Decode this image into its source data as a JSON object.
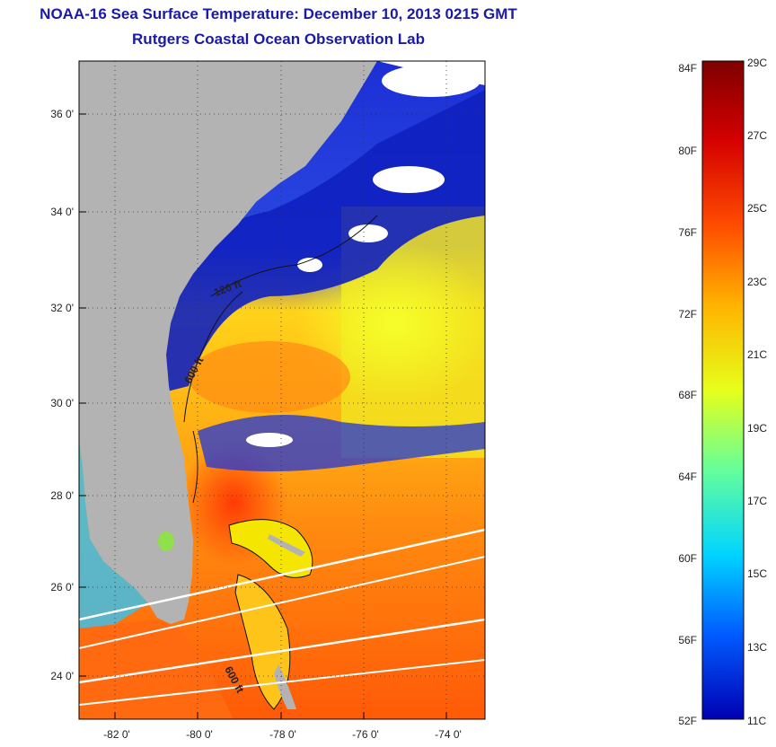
{
  "title": {
    "line1": "NOAA-16 Sea Surface Temperature:  December 10, 2013 0215 GMT",
    "line2": "Rutgers Coastal Ocean Observation Lab"
  },
  "map": {
    "lat_labels": [
      "36 0'",
      "34 0'",
      "32 0'",
      "30 0'",
      "28 0'",
      "26 0'",
      "24 0'"
    ],
    "lon_labels": [
      "-82 0'",
      "-80 0'",
      "-78 0'",
      "-76 0'",
      "-74 0'"
    ],
    "contour_labels": [
      "120 ft",
      "600 ft",
      "600 ft"
    ],
    "land_color": "#b3b3b3",
    "cloud_color": "#ffffff"
  },
  "colorbar": {
    "fahrenheit_labels": [
      "84F",
      "80F",
      "76F",
      "72F",
      "68F",
      "64F",
      "60F",
      "56F",
      "52F"
    ],
    "celsius_labels": [
      "29C",
      "27C",
      "25C",
      "23C",
      "21C",
      "19C",
      "17C",
      "15C",
      "13C",
      "11C"
    ],
    "colors": [
      "#7f0000",
      "#d40000",
      "#ff4c00",
      "#ffb300",
      "#e6ff1a",
      "#66ff99",
      "#00d4ff",
      "#005cff",
      "#0000b3"
    ]
  }
}
